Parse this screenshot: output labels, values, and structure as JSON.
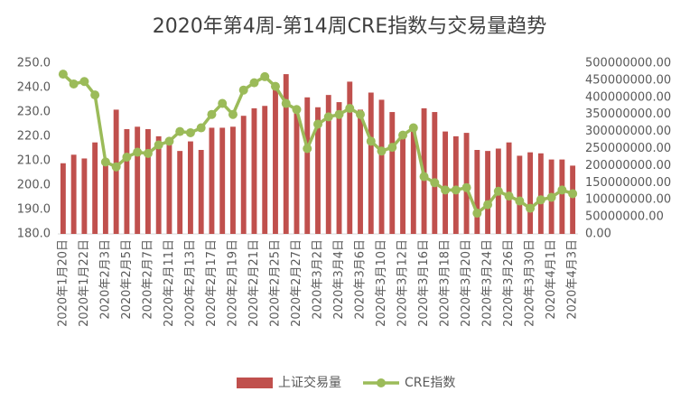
{
  "chart_data": {
    "type": "bar-line",
    "title": "2020年第4周-第14周CRE指数与交易量趋势",
    "categories": [
      "2020年1月20日",
      null,
      "2020年1月22日",
      null,
      "2020年2月3日",
      null,
      "2020年2月5日",
      null,
      "2020年2月7日",
      null,
      "2020年2月11日",
      null,
      "2020年2月13日",
      null,
      "2020年2月17日",
      null,
      "2020年2月19日",
      null,
      "2020年2月21日",
      null,
      "2020年2月25日",
      null,
      "2020年2月27日",
      null,
      "2020年3月2日",
      null,
      "2020年3月4日",
      null,
      "2020年3月6日",
      null,
      "2020年3月10日",
      null,
      "2020年3月12日",
      null,
      "2020年3月16日",
      null,
      "2020年3月18日",
      null,
      "2020年3月20日",
      null,
      "2020年3月24日",
      null,
      "2020年3月26日",
      null,
      "2020年3月30日",
      null,
      "2020年4月1日",
      null,
      "2020年4月3日"
    ],
    "series": [
      {
        "name": "上证交易量",
        "type": "bar",
        "axis": "y2",
        "color": "#c0504d",
        "values": [
          207000000,
          232000000,
          221000000,
          268000000,
          214000000,
          364000000,
          307000000,
          314000000,
          307000000,
          286000000,
          271000000,
          243000000,
          271000000,
          246000000,
          311000000,
          311000000,
          314000000,
          346000000,
          368000000,
          375000000,
          436000000,
          468000000,
          357000000,
          400000000,
          371000000,
          407000000,
          386000000,
          446000000,
          364000000,
          414000000,
          393000000,
          357000000,
          286000000,
          300000000,
          368000000,
          357000000,
          300000000,
          286000000,
          296000000,
          246000000,
          243000000,
          250000000,
          268000000,
          229000000,
          239000000,
          236000000,
          218000000,
          218000000,
          200000000
        ]
      },
      {
        "name": "CRE指数",
        "type": "line",
        "axis": "y",
        "color": "#9bbb59",
        "values": [
          245.5,
          241.5,
          242.5,
          237,
          209.5,
          207.5,
          211.5,
          213.5,
          213,
          216.5,
          218,
          222,
          221.5,
          223.5,
          229,
          233.5,
          229,
          239,
          242,
          244.5,
          240.5,
          233.5,
          231,
          215,
          225,
          228,
          229,
          231.5,
          229,
          218,
          214,
          215.5,
          220.5,
          223.5,
          203.5,
          201,
          198,
          198,
          199,
          188.5,
          192,
          197.5,
          195.5,
          193.5,
          190.5,
          194,
          195,
          198,
          196.5
        ]
      }
    ],
    "ylim": [
      180,
      250
    ],
    "yticks": [
      {
        "value": 180,
        "label": "180.0"
      },
      {
        "value": 190,
        "label": "190.0"
      },
      {
        "value": 200,
        "label": "200.0"
      },
      {
        "value": 210,
        "label": "210.0"
      },
      {
        "value": 220,
        "label": "220.0"
      },
      {
        "value": 230,
        "label": "230.0"
      },
      {
        "value": 240,
        "label": "240.0"
      },
      {
        "value": 250,
        "label": "250.0"
      }
    ],
    "y2lim": [
      0,
      500000000
    ],
    "y2ticks": [
      {
        "value": 0,
        "label": "0.00"
      },
      {
        "value": 50000000,
        "label": "50000000.00"
      },
      {
        "value": 100000000,
        "label": "100000000.00"
      },
      {
        "value": 150000000,
        "label": "150000000.00"
      },
      {
        "value": 200000000,
        "label": "200000000.00"
      },
      {
        "value": 250000000,
        "label": "250000000.00"
      },
      {
        "value": 300000000,
        "label": "300000000.00"
      },
      {
        "value": 350000000,
        "label": "350000000.00"
      },
      {
        "value": 400000000,
        "label": "400000000.00"
      },
      {
        "value": 450000000,
        "label": "450000000.00"
      },
      {
        "value": 500000000,
        "label": "500000000.00"
      }
    ],
    "legend": "bottom"
  }
}
